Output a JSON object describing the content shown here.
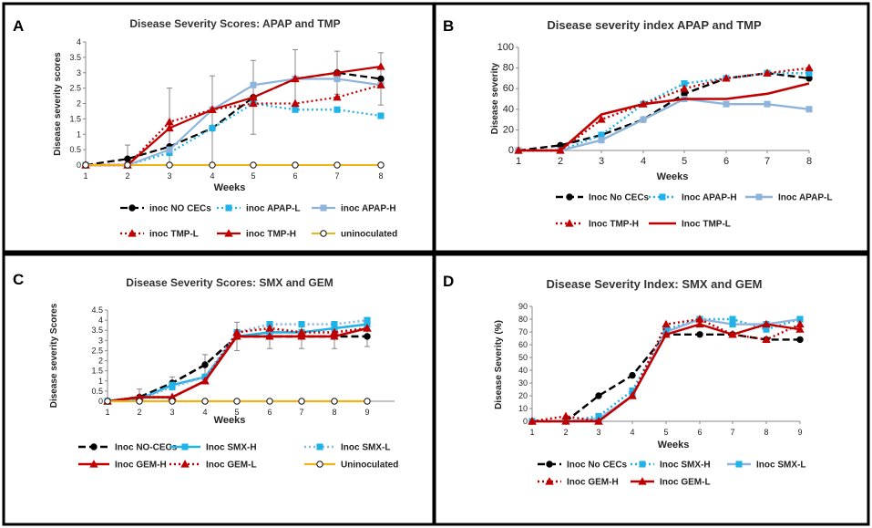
{
  "colors": {
    "black": "#000000",
    "cyan": "#1fb3e8",
    "lightblue": "#8fb4dc",
    "red": "#c00000",
    "orange": "#f2b318"
  },
  "chart_data": [
    {
      "panel": "A",
      "type": "line",
      "title": "Disease Severity Scores: APAP and TMP",
      "xlabel": "Weeks",
      "ylabel": "Disease severity scores",
      "x": [
        1,
        2,
        3,
        4,
        5,
        6,
        7,
        8
      ],
      "ylim": [
        0,
        4
      ],
      "yticks": [
        "0",
        "0.5",
        "1",
        "1.5",
        "2",
        "2.5",
        "3",
        "3.5",
        "4"
      ],
      "ytick_values": [
        0,
        0.5,
        1,
        1.5,
        2,
        2.5,
        3,
        3.5,
        4
      ],
      "series": [
        {
          "name": "inoc NO CECs",
          "color": "#000000",
          "dash": "8,4",
          "width": 2.2,
          "marker": "circle",
          "fill": "#000000",
          "values": [
            0,
            0.2,
            0.6,
            1.2,
            2.2,
            2.8,
            3.0,
            2.8
          ],
          "err": [
            0,
            0.45,
            1.9,
            1.7,
            1.2,
            0.95,
            0.7,
            0.85
          ]
        },
        {
          "name": "inoc APAP-L",
          "color": "#1fb3e8",
          "dash": "2,3",
          "width": 2.2,
          "marker": "square",
          "fill": "#1fb3e8",
          "values": [
            0,
            0,
            0.4,
            1.2,
            2.0,
            1.8,
            1.8,
            1.6
          ]
        },
        {
          "name": "inoc APAP-H",
          "color": "#8fb4dc",
          "dash": "",
          "width": 2.2,
          "marker": "square",
          "fill": "#8fb4dc",
          "values": [
            0,
            0,
            0.5,
            1.8,
            2.6,
            2.8,
            2.8,
            2.6
          ]
        },
        {
          "name": "inoc TMP-L",
          "color": "#c00000",
          "dash": "2,3",
          "width": 2.2,
          "marker": "triangle",
          "fill": "#c00000",
          "values": [
            0,
            0,
            1.4,
            1.8,
            2.0,
            2.0,
            2.2,
            2.6
          ]
        },
        {
          "name": "inoc TMP-H",
          "color": "#c00000",
          "dash": "",
          "width": 2.2,
          "marker": "triangle",
          "fill": "#c00000",
          "values": [
            0,
            0,
            1.2,
            1.8,
            2.2,
            2.8,
            3.0,
            3.2
          ]
        },
        {
          "name": "uninoculated",
          "color": "#f2b318",
          "dash": "",
          "width": 2,
          "marker": "circle",
          "fill": "#ffffff",
          "values": [
            0,
            0,
            0,
            0,
            0,
            0,
            0,
            0
          ]
        }
      ],
      "legend_rows": [
        [
          "inoc NO CECs",
          "inoc APAP-L",
          "inoc APAP-H"
        ],
        [
          "inoc TMP-L",
          "inoc TMP-H",
          "uninoculated"
        ]
      ]
    },
    {
      "panel": "B",
      "type": "line",
      "title": "Disease severity index APAP and TMP",
      "xlabel": "Weeks",
      "ylabel": "Disease severity",
      "x": [
        1,
        2,
        3,
        4,
        5,
        6,
        7,
        8
      ],
      "ylim": [
        0,
        100
      ],
      "yticks": [
        "0",
        "20",
        "40",
        "60",
        "80",
        "100"
      ],
      "ytick_values": [
        0,
        20,
        40,
        60,
        80,
        100
      ],
      "series": [
        {
          "name": "Inoc No CECs",
          "color": "#000000",
          "dash": "8,4",
          "width": 2.4,
          "marker": "circle",
          "fill": "#000000",
          "values": [
            0,
            5,
            15,
            30,
            55,
            70,
            75,
            70
          ]
        },
        {
          "name": "Inoc APAP-H",
          "color": "#1fb3e8",
          "dash": "2,3",
          "width": 2.4,
          "marker": "square",
          "fill": "#1fb3e8",
          "values": [
            0,
            0,
            15,
            45,
            65,
            70,
            75,
            75
          ]
        },
        {
          "name": "Inoc APAP-L",
          "color": "#8fb4dc",
          "dash": "",
          "width": 2.4,
          "marker": "square",
          "fill": "#8fb4dc",
          "values": [
            0,
            0,
            10,
            30,
            50,
            45,
            45,
            40
          ]
        },
        {
          "name": "Inoc TMP-H",
          "color": "#c00000",
          "dash": "2,3",
          "width": 2.4,
          "marker": "triangle",
          "fill": "#c00000",
          "values": [
            0,
            0,
            30,
            45,
            60,
            70,
            75,
            80
          ]
        },
        {
          "name": "Inoc TMP-L",
          "color": "#c00000",
          "dash": "",
          "width": 2.6,
          "marker": "none",
          "fill": "#c00000",
          "values": [
            0,
            0,
            35,
            45,
            50,
            50,
            55,
            65
          ]
        }
      ],
      "legend_rows": [
        [
          "Inoc No CECs",
          "Inoc APAP-H",
          "Inoc APAP-L"
        ],
        [
          "Inoc TMP-H",
          "Inoc TMP-L"
        ]
      ]
    },
    {
      "panel": "C",
      "type": "line",
      "title": "Disease Severity Scores: SMX and GEM",
      "xlabel": "Weeks",
      "ylabel": "Disease severity Scores",
      "x": [
        1,
        2,
        3,
        4,
        5,
        6,
        7,
        8,
        9
      ],
      "ylim": [
        0,
        4.5
      ],
      "yticks": [
        "0",
        "0.5",
        "1",
        "1.5",
        "2",
        "2.5",
        "3",
        "3.5",
        "4",
        "4.5"
      ],
      "ytick_values": [
        0,
        0.5,
        1,
        1.5,
        2,
        2.5,
        3,
        3.5,
        4,
        4.5
      ],
      "series": [
        {
          "name": "Inoc NO-CECs",
          "color": "#000000",
          "dash": "8,4",
          "width": 2.6,
          "marker": "circle",
          "fill": "#000000",
          "values": [
            0,
            0.2,
            0.9,
            1.8,
            3.2,
            3.2,
            3.2,
            3.2,
            3.2
          ],
          "err": [
            0,
            0.4,
            0.3,
            0.5,
            0.7,
            0.6,
            0.6,
            0.6,
            0.5
          ]
        },
        {
          "name": "Inoc SMX-H",
          "color": "#1fb3e8",
          "dash": "",
          "width": 2.6,
          "marker": "square",
          "fill": "#1fb3e8",
          "values": [
            0,
            0.1,
            0.8,
            1.2,
            3.2,
            3.4,
            3.4,
            3.6,
            3.8
          ]
        },
        {
          "name": "Inoc SMX-L",
          "color": "#8fb4dc",
          "dash": "2,3",
          "width": 2.6,
          "marker": "square",
          "fill": "#1fb3e8",
          "values": [
            0,
            0.1,
            0.7,
            1.2,
            3.4,
            3.8,
            3.8,
            3.8,
            4.0
          ]
        },
        {
          "name": "Inoc GEM-H",
          "color": "#c00000",
          "dash": "",
          "width": 2.6,
          "marker": "triangle",
          "fill": "#c00000",
          "values": [
            0,
            0.2,
            0.2,
            1.0,
            3.2,
            3.2,
            3.2,
            3.2,
            3.6
          ]
        },
        {
          "name": "Inoc GEM-L",
          "color": "#c00000",
          "dash": "2,3",
          "width": 2.6,
          "marker": "triangle",
          "fill": "#c00000",
          "values": [
            0,
            0.2,
            0.2,
            1.0,
            3.4,
            3.6,
            3.4,
            3.4,
            3.6
          ]
        },
        {
          "name": "Uninoculated",
          "color": "#f2b318",
          "dash": "",
          "width": 2.2,
          "marker": "circle",
          "fill": "#ffffff",
          "values": [
            0,
            0,
            0,
            0,
            0,
            0,
            0,
            0,
            0
          ]
        }
      ],
      "legend_rows": [
        [
          "Inoc NO-CECs",
          "Inoc SMX-H",
          "Inoc SMX-L"
        ],
        [
          "Inoc GEM-H",
          "Inoc GEM-L",
          "Uninoculated"
        ]
      ]
    },
    {
      "panel": "D",
      "type": "line",
      "title": "Disease Severity Index: SMX and GEM",
      "xlabel": "Weeks",
      "ylabel": "Disease Severity (%)",
      "x": [
        1,
        2,
        3,
        4,
        5,
        6,
        7,
        8,
        9
      ],
      "ylim": [
        0,
        90
      ],
      "yticks": [
        "0",
        "10",
        "20",
        "30",
        "40",
        "50",
        "60",
        "70",
        "80",
        "90"
      ],
      "ytick_values": [
        0,
        10,
        20,
        30,
        40,
        50,
        60,
        70,
        80,
        90
      ],
      "series": [
        {
          "name": "Inoc No CECs",
          "color": "#000000",
          "dash": "8,4",
          "width": 2.4,
          "marker": "circle",
          "fill": "#000000",
          "values": [
            0,
            0,
            20,
            36,
            68,
            68,
            68,
            64,
            64
          ]
        },
        {
          "name": "Inoc SMX-H",
          "color": "#1fb3e8",
          "dash": "2,3",
          "width": 2.4,
          "marker": "square",
          "fill": "#1fb3e8",
          "values": [
            0,
            0,
            4,
            24,
            72,
            80,
            80,
            72,
            80
          ]
        },
        {
          "name": "Inoc SMX-L",
          "color": "#8fb4dc",
          "dash": "",
          "width": 2.4,
          "marker": "square",
          "fill": "#1fb3e8",
          "values": [
            0,
            0,
            2,
            20,
            70,
            80,
            76,
            76,
            80
          ]
        },
        {
          "name": "Inoc GEM-H",
          "color": "#c00000",
          "dash": "2,3",
          "width": 2.4,
          "marker": "triangle",
          "fill": "#c00000",
          "values": [
            0,
            4,
            0,
            20,
            76,
            80,
            68,
            64,
            76
          ]
        },
        {
          "name": "Inoc GEM-L",
          "color": "#c00000",
          "dash": "",
          "width": 2.4,
          "marker": "triangle",
          "fill": "#c00000",
          "values": [
            0,
            0,
            0,
            20,
            68,
            76,
            68,
            76,
            72
          ]
        }
      ],
      "legend_rows": [
        [
          "Inoc No CECs",
          "Inoc SMX-H",
          "Inoc SMX-L"
        ],
        [
          "Inoc GEM-H",
          "Inoc GEM-L"
        ]
      ]
    }
  ]
}
